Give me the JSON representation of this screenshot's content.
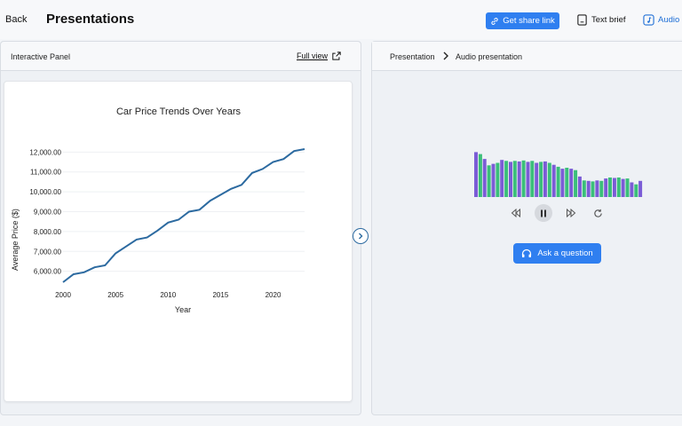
{
  "header": {
    "back_label": "Back",
    "title": "Presentations",
    "share_label": "Get share link",
    "text_brief_label": "Text brief",
    "audio_label": "Audio"
  },
  "left_panel": {
    "title": "Interactive Panel",
    "full_view_label": "Full view"
  },
  "right_panel": {
    "breadcrumb": [
      "Presentation",
      "Audio presentation"
    ],
    "ask_label": "Ask a question",
    "controls": [
      "rewind-icon",
      "pause-icon",
      "fast-forward-icon",
      "replay-icon"
    ],
    "waveform_levels": [
      0.92,
      0.88,
      0.78,
      0.65,
      0.68,
      0.7,
      0.76,
      0.74,
      0.72,
      0.74,
      0.73,
      0.75,
      0.72,
      0.74,
      0.7,
      0.72,
      0.73,
      0.7,
      0.66,
      0.62,
      0.58,
      0.6,
      0.58,
      0.55,
      0.42,
      0.34,
      0.33,
      0.32,
      0.34,
      0.33,
      0.38,
      0.4,
      0.39,
      0.4,
      0.37,
      0.38,
      0.3,
      0.26,
      0.33
    ]
  },
  "colors": {
    "accent": "#2f7ff0",
    "line": "#2c6aa0",
    "wave_purple": "#7b5cd6",
    "wave_green": "#3bbf7a"
  },
  "chart_data": {
    "type": "line",
    "title": "Car Price Trends Over Years",
    "xlabel": "Year",
    "ylabel": "Average Price ($)",
    "x": [
      2000,
      2001,
      2002,
      2003,
      2004,
      2005,
      2006,
      2007,
      2008,
      2009,
      2010,
      2011,
      2012,
      2013,
      2014,
      2015,
      2016,
      2017,
      2018,
      2019,
      2020,
      2021,
      2022,
      2023
    ],
    "y": [
      5450,
      5850,
      5950,
      6200,
      6300,
      6900,
      7250,
      7600,
      7700,
      8050,
      8450,
      8600,
      9000,
      9100,
      9550,
      9850,
      10150,
      10350,
      10950,
      11150,
      11500,
      11650,
      12050,
      12150
    ],
    "xticks": [
      2000,
      2005,
      2010,
      2015,
      2020
    ],
    "yticks": [
      6000,
      7000,
      8000,
      9000,
      10000,
      11000,
      12000
    ],
    "ytick_labels": [
      "6,000.00",
      "7,000.00",
      "8,000.00",
      "9,000.00",
      "10,000.00",
      "11,000.00",
      "12,000.00"
    ],
    "xlim": [
      2000,
      2023
    ],
    "ylim": [
      5450,
      12150
    ],
    "grid": true
  }
}
